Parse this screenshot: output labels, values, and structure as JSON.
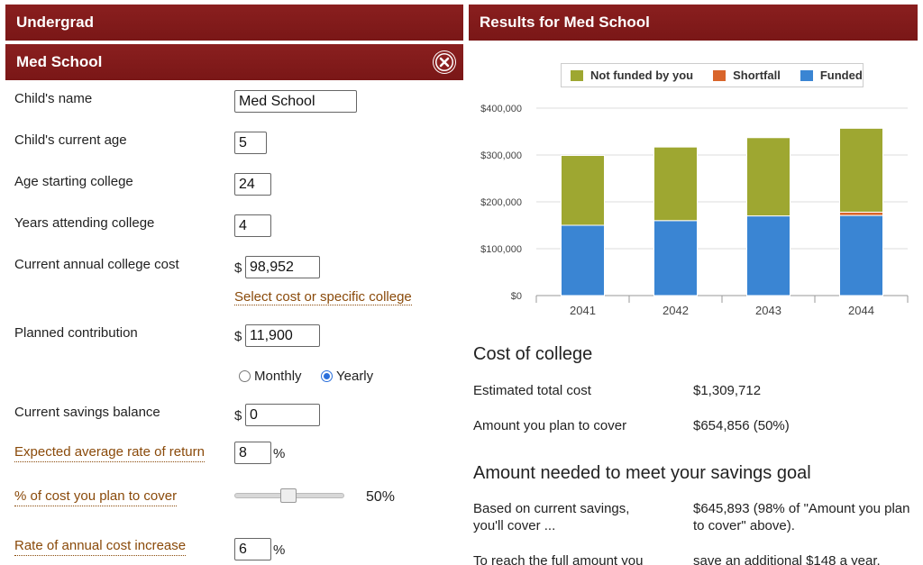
{
  "left_panel": {
    "collapsed_tab": "Undergrad",
    "active_tab": "Med School",
    "fields": {
      "child_name": {
        "label": "Child's name",
        "value": "Med School"
      },
      "current_age": {
        "label": "Child's current age",
        "value": "5"
      },
      "age_start": {
        "label": "Age starting college",
        "value": "24"
      },
      "years_attending": {
        "label": "Years attending college",
        "value": "4"
      },
      "annual_cost": {
        "label": "Current annual college cost",
        "currency": "$",
        "value": "98,952",
        "link": "Select cost or specific college"
      },
      "contribution": {
        "label": "Planned contribution",
        "currency": "$",
        "value": "11,900",
        "frequency_monthly": "Monthly",
        "frequency_yearly": "Yearly",
        "selected_frequency": "Yearly"
      },
      "savings_balance": {
        "label": "Current savings balance",
        "currency": "$",
        "value": "0"
      },
      "rate_of_return": {
        "label": "Expected average rate of return",
        "value": "8",
        "unit": "%"
      },
      "cost_cover": {
        "label": "% of cost you plan to cover",
        "value_text": "50%",
        "value": 50
      },
      "cost_increase": {
        "label": "Rate of annual cost increase",
        "value": "6",
        "unit": "%"
      }
    }
  },
  "right_panel": {
    "title": "Results for Med School",
    "cost_section": {
      "title": "Cost of college",
      "rows": [
        {
          "label": "Estimated total cost",
          "value": "$1,309,712"
        },
        {
          "label": "Amount you plan to cover",
          "value": "$654,856 (50%)"
        }
      ]
    },
    "goal_section": {
      "title": "Amount needed to meet your savings goal",
      "rows": [
        {
          "label": "Based on current savings, you'll cover ...",
          "value": "$645,893 (98% of \"Amount you plan to cover\" above)."
        },
        {
          "label": "To reach the full amount you",
          "value": "save an additional $148 a year."
        }
      ]
    }
  },
  "chart_data": {
    "type": "bar",
    "stacked": true,
    "categories": [
      "2041",
      "2042",
      "2043",
      "2044"
    ],
    "series": [
      {
        "name": "Funded",
        "color": "#3a85d3",
        "values": [
          150000,
          160000,
          170000,
          171000
        ]
      },
      {
        "name": "Shortfall",
        "color": "#d9652b",
        "values": [
          0,
          0,
          0,
          7000
        ]
      },
      {
        "name": "Not funded by you",
        "color": "#9ea731",
        "values": [
          149000,
          157000,
          167000,
          179000
        ]
      }
    ],
    "legend_order": [
      "Not funded by you",
      "Shortfall",
      "Funded"
    ],
    "y_ticks": [
      "$0",
      "$100,000",
      "$200,000",
      "$300,000",
      "$400,000"
    ],
    "ylim": [
      0,
      400000
    ],
    "title": "",
    "xlabel": "",
    "ylabel": ""
  }
}
